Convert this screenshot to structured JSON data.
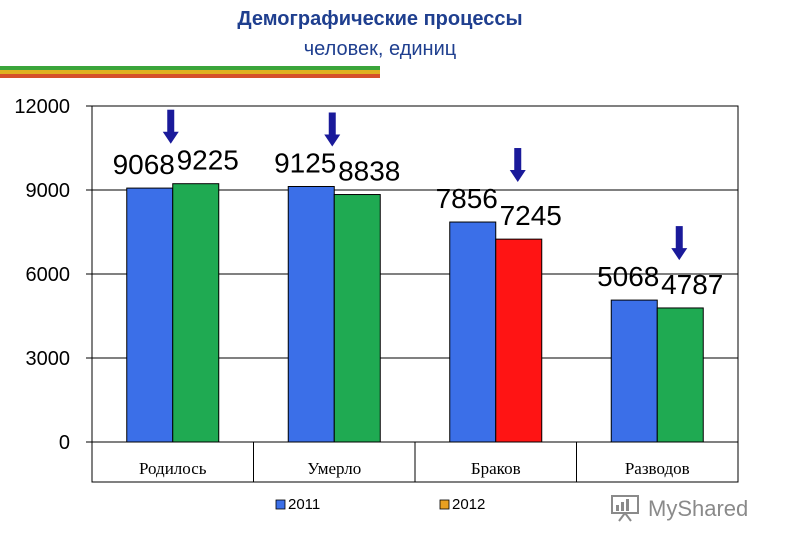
{
  "header": {
    "title": "Демографические процессы",
    "subtitle": "человек, единиц"
  },
  "watermark": {
    "text": "MyShared",
    "icon": "presentation-board-icon"
  },
  "chart_data": {
    "type": "bar",
    "categories": [
      "Родилось",
      "Умерло",
      "Браков",
      "Разводов"
    ],
    "series": [
      {
        "name": "2011",
        "values": [
          9068,
          9125,
          7856,
          5068
        ],
        "color": "#3b6fe8"
      },
      {
        "name": "2012",
        "values": [
          9225,
          8838,
          7245,
          4787
        ],
        "color": "#1faa52"
      }
    ],
    "highlight": {
      "series": 1,
      "category": 2,
      "color": "#ff1414"
    },
    "legend_colors": [
      "#3b6fe8",
      "#e8a020"
    ],
    "arrow_color": "#1a1a9a",
    "yticks": [
      "0",
      "3000",
      "6000",
      "9000",
      "12000"
    ],
    "ylim": [
      0,
      12000
    ],
    "grid": true,
    "legend": "bottom-center"
  }
}
